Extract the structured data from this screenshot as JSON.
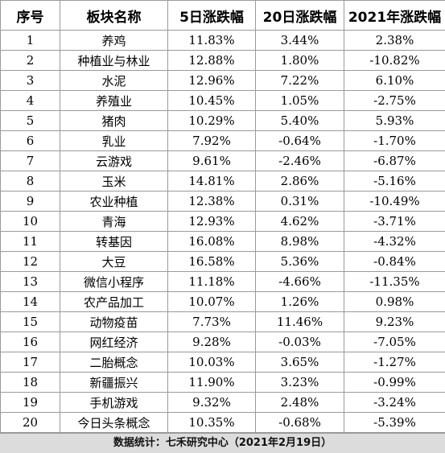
{
  "headers": [
    "序号",
    "板块名称",
    "5日涨跌幅",
    "20日涨跌幅",
    "2021年涨跌幅"
  ],
  "rows": [
    {
      "no": "1",
      "name": "养鸡",
      "d5": "11.83%",
      "d20": "3.44%",
      "ytd": "2.38%"
    },
    {
      "no": "2",
      "name": "种植业与林业",
      "d5": "12.88%",
      "d20": "1.80%",
      "ytd": "-10.82%"
    },
    {
      "no": "3",
      "name": "水泥",
      "d5": "12.96%",
      "d20": "7.22%",
      "ytd": "6.10%"
    },
    {
      "no": "4",
      "name": "养殖业",
      "d5": "10.45%",
      "d20": "1.05%",
      "ytd": "-2.75%"
    },
    {
      "no": "5",
      "name": "猪肉",
      "d5": "10.29%",
      "d20": "5.40%",
      "ytd": "5.93%"
    },
    {
      "no": "6",
      "name": "乳业",
      "d5": "7.92%",
      "d20": "-0.64%",
      "ytd": "-1.70%"
    },
    {
      "no": "7",
      "name": "云游戏",
      "d5": "9.61%",
      "d20": "-2.46%",
      "ytd": "-6.87%"
    },
    {
      "no": "8",
      "name": "玉米",
      "d5": "14.81%",
      "d20": "2.86%",
      "ytd": "-5.16%"
    },
    {
      "no": "9",
      "name": "农业种植",
      "d5": "12.38%",
      "d20": "0.31%",
      "ytd": "-10.49%"
    },
    {
      "no": "10",
      "name": "青海",
      "d5": "12.93%",
      "d20": "4.62%",
      "ytd": "-3.71%"
    },
    {
      "no": "11",
      "name": "转基因",
      "d5": "16.08%",
      "d20": "8.98%",
      "ytd": "-4.32%"
    },
    {
      "no": "12",
      "name": "大豆",
      "d5": "16.58%",
      "d20": "5.36%",
      "ytd": "-0.84%"
    },
    {
      "no": "13",
      "name": "微信小程序",
      "d5": "11.18%",
      "d20": "-4.66%",
      "ytd": "-11.35%"
    },
    {
      "no": "14",
      "name": "农产品加工",
      "d5": "10.07%",
      "d20": "1.26%",
      "ytd": "0.98%"
    },
    {
      "no": "15",
      "name": "动物疫苗",
      "d5": "7.73%",
      "d20": "11.46%",
      "ytd": "9.23%"
    },
    {
      "no": "16",
      "name": "网红经济",
      "d5": "9.28%",
      "d20": "-0.03%",
      "ytd": "-7.05%"
    },
    {
      "no": "17",
      "name": "二胎概念",
      "d5": "10.03%",
      "d20": "3.65%",
      "ytd": "-1.27%"
    },
    {
      "no": "18",
      "name": "新疆振兴",
      "d5": "11.90%",
      "d20": "3.23%",
      "ytd": "-0.99%"
    },
    {
      "no": "19",
      "name": "手机游戏",
      "d5": "9.32%",
      "d20": "2.48%",
      "ytd": "-3.24%"
    },
    {
      "no": "20",
      "name": "今日头条概念",
      "d5": "10.35%",
      "d20": "-0.68%",
      "ytd": "-5.39%"
    }
  ],
  "footer": "数据统计：七禾研究中心（2021年2月19日）",
  "colors": {
    "grid": "#9a9a9a",
    "footer_bg": "#dcdcdc"
  }
}
